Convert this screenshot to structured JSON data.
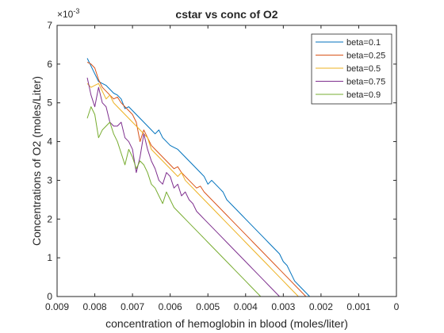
{
  "chart_data": {
    "type": "line",
    "title": "cstar vs conc of O2",
    "xlabel": "concentration of hemoglobin in blood (moles/liter)",
    "ylabel": "Concentrations of O2 (moles/Liter)",
    "x_reversed": true,
    "xlim": [
      0,
      0.009
    ],
    "ylim": [
      0,
      0.007
    ],
    "x_ticks": [
      0.009,
      0.008,
      0.007,
      0.006,
      0.005,
      0.004,
      0.003,
      0.002,
      0.001,
      0
    ],
    "x_tick_labels": [
      "0.009",
      "0.008",
      "0.007",
      "0.006",
      "0.005",
      "0.004",
      "0.003",
      "0.002",
      "0.001",
      "0"
    ],
    "y_ticks": [
      0,
      0.001,
      0.002,
      0.003,
      0.004,
      0.005,
      0.006,
      0.007
    ],
    "y_tick_labels": [
      "0",
      "1",
      "2",
      "3",
      "4",
      "5",
      "6",
      "7"
    ],
    "y_exponent_label": "×10",
    "y_exponent": "-3",
    "grid": false,
    "legend_position": "top-right",
    "series": [
      {
        "name": "beta=0.1",
        "color": "#0072BD",
        "x": [
          0.0082,
          0.0081,
          0.008,
          0.0079,
          0.0078,
          0.0077,
          0.0076,
          0.0075,
          0.0074,
          0.0073,
          0.0072,
          0.0071,
          0.007,
          0.0069,
          0.0068,
          0.0067,
          0.0066,
          0.0065,
          0.0064,
          0.0063,
          0.0062,
          0.0061,
          0.006,
          0.0059,
          0.0058,
          0.0057,
          0.0056,
          0.0055,
          0.0054,
          0.0053,
          0.0052,
          0.0051,
          0.005,
          0.0049,
          0.0048,
          0.0047,
          0.0046,
          0.0045,
          0.0044,
          0.0043,
          0.0042,
          0.0041,
          0.004,
          0.0039,
          0.0038,
          0.0037,
          0.0036,
          0.0035,
          0.0034,
          0.0033,
          0.0032,
          0.0031,
          0.003,
          0.0029,
          0.0028,
          0.0027,
          0.0026,
          0.0025,
          0.0024,
          0.0023,
          0.0022,
          0.0021,
          0.002,
          0.0019,
          0.0018,
          0.0017,
          0.0016,
          0.0015,
          0.0014,
          0.0013,
          0.0012,
          0.0011,
          0.001,
          0.0009,
          0.0008,
          0.0007,
          0.0006,
          0.0005,
          0.0004,
          0.0003,
          0.0002,
          0.0001,
          0
        ],
        "values": [
          0.00615,
          0.00595,
          0.00575,
          0.00555,
          0.0055,
          0.00545,
          0.00535,
          0.00525,
          0.0052,
          0.0051,
          0.00485,
          0.0049,
          0.0048,
          0.0047,
          0.0046,
          0.0045,
          0.0044,
          0.0043,
          0.0042,
          0.0043,
          0.0041,
          0.004,
          0.0039,
          0.00385,
          0.0038,
          0.0037,
          0.0036,
          0.0035,
          0.0034,
          0.0033,
          0.0032,
          0.0031,
          0.0029,
          0.003,
          0.0029,
          0.0028,
          0.0027,
          0.0025,
          0.0024,
          0.0023,
          0.0022,
          0.0021,
          0.002,
          0.0019,
          0.0018,
          0.0017,
          0.0016,
          0.0015,
          0.0014,
          0.0013,
          0.0012,
          0.0011,
          0.0009,
          0.0008,
          0.0006,
          0.0004,
          0.0003,
          0.0002,
          0.0001,
          0,
          0,
          0,
          0,
          0,
          0,
          0,
          0,
          0,
          0,
          0,
          0,
          0,
          0,
          0,
          0,
          0,
          0,
          0,
          0,
          0,
          0,
          0,
          0
        ]
      },
      {
        "name": "beta=0.25",
        "color": "#D95319",
        "x": [
          0.0082,
          0.0081,
          0.008,
          0.0079,
          0.0078,
          0.0077,
          0.0076,
          0.0075,
          0.0074,
          0.0073,
          0.0072,
          0.0071,
          0.007,
          0.0069,
          0.0068,
          0.0067,
          0.0066,
          0.0065,
          0.0064,
          0.0063,
          0.0062,
          0.0061,
          0.006,
          0.0059,
          0.0058,
          0.0057,
          0.0056,
          0.0055,
          0.0054,
          0.0053,
          0.0052,
          0.0051,
          0.005,
          0.0049,
          0.0048,
          0.0047,
          0.0046,
          0.0045,
          0.0044,
          0.0043,
          0.0042,
          0.0041,
          0.004,
          0.0039,
          0.0038,
          0.0037,
          0.0036,
          0.0035,
          0.0034,
          0.0033,
          0.0032,
          0.0031,
          0.003,
          0.0029,
          0.0028,
          0.0027,
          0.0026,
          0.0025,
          0.0024,
          0.0023,
          0.0022,
          0.0021,
          0.002,
          0.0019,
          0.0018,
          0.0017,
          0.0016,
          0.0015,
          0.0014,
          0.0013,
          0.0012,
          0.0011,
          0.001,
          0.0009,
          0.0008,
          0.0007,
          0.0006,
          0.0005,
          0.0004,
          0.0003,
          0.0002,
          0.0001,
          0
        ],
        "values": [
          0.00605,
          0.006,
          0.0059,
          0.0056,
          0.0054,
          0.0053,
          0.0052,
          0.0051,
          0.00515,
          0.005,
          0.0049,
          0.0048,
          0.0047,
          0.0045,
          0.004,
          0.0043,
          0.0041,
          0.0039,
          0.0038,
          0.0037,
          0.0036,
          0.0035,
          0.0034,
          0.0033,
          0.00335,
          0.0032,
          0.0031,
          0.003,
          0.0029,
          0.0028,
          0.00285,
          0.0027,
          0.0026,
          0.0025,
          0.0024,
          0.0023,
          0.0022,
          0.0021,
          0.002,
          0.0019,
          0.0018,
          0.0017,
          0.0016,
          0.0015,
          0.0014,
          0.0013,
          0.0012,
          0.0011,
          0.001,
          0.0009,
          0.0008,
          0.0007,
          0.0006,
          0.0005,
          0.0004,
          0.0003,
          0.0002,
          0.0001,
          0,
          0,
          0,
          0,
          0,
          0,
          0,
          0,
          0,
          0,
          0,
          0,
          0,
          0,
          0,
          0,
          0,
          0,
          0,
          0,
          0,
          0,
          0,
          0,
          0
        ]
      },
      {
        "name": "beta=0.5",
        "color": "#EDB120",
        "x": [
          0.0082,
          0.0081,
          0.008,
          0.0079,
          0.0078,
          0.0077,
          0.0076,
          0.0075,
          0.0074,
          0.0073,
          0.0072,
          0.0071,
          0.007,
          0.0069,
          0.0068,
          0.0067,
          0.0066,
          0.0065,
          0.0064,
          0.0063,
          0.0062,
          0.0061,
          0.006,
          0.0059,
          0.0058,
          0.0057,
          0.0056,
          0.0055,
          0.0054,
          0.0053,
          0.0052,
          0.0051,
          0.005,
          0.0049,
          0.0048,
          0.0047,
          0.0046,
          0.0045,
          0.0044,
          0.0043,
          0.0042,
          0.0041,
          0.004,
          0.0039,
          0.0038,
          0.0037,
          0.0036,
          0.0035,
          0.0034,
          0.0033,
          0.0032,
          0.0031,
          0.003,
          0.0029,
          0.0028,
          0.0027,
          0.0026,
          0.0025,
          0.0024,
          0.0023,
          0.0022,
          0.0021,
          0.002,
          0.0019,
          0.0018,
          0.0017,
          0.0016,
          0.0015,
          0.0014,
          0.0013,
          0.0012,
          0.0011,
          0.001,
          0.0009,
          0.0008,
          0.0007,
          0.0006,
          0.0005,
          0.0004,
          0.0003,
          0.0002,
          0.0001,
          0
        ],
        "values": [
          0.0055,
          0.0054,
          0.00545,
          0.0055,
          0.0053,
          0.0051,
          0.0052,
          0.005,
          0.0049,
          0.0048,
          0.0047,
          0.0046,
          0.0045,
          0.0044,
          0.0043,
          0.0042,
          0.0041,
          0.0038,
          0.0037,
          0.0036,
          0.0035,
          0.0034,
          0.0033,
          0.0032,
          0.0031,
          0.0032,
          0.003,
          0.0029,
          0.0028,
          0.0027,
          0.0026,
          0.0025,
          0.0024,
          0.0023,
          0.0022,
          0.0021,
          0.002,
          0.0019,
          0.0018,
          0.0017,
          0.0016,
          0.0015,
          0.0014,
          0.0013,
          0.0012,
          0.0011,
          0.001,
          0.0009,
          0.0008,
          0.0007,
          0.0006,
          0.0005,
          0.0004,
          0.0003,
          0.0002,
          0.0001,
          0,
          0,
          0,
          0,
          0,
          0,
          0,
          0,
          0,
          0,
          0,
          0,
          0,
          0,
          0,
          0,
          0,
          0,
          0,
          0,
          0,
          0,
          0,
          0,
          0,
          0,
          0
        ]
      },
      {
        "name": "beta=0.75",
        "color": "#7E2F8E",
        "x": [
          0.0082,
          0.0081,
          0.008,
          0.0079,
          0.0078,
          0.0077,
          0.0076,
          0.0075,
          0.0074,
          0.0073,
          0.0072,
          0.0071,
          0.007,
          0.0069,
          0.0068,
          0.0067,
          0.0066,
          0.0065,
          0.0064,
          0.0063,
          0.0062,
          0.0061,
          0.006,
          0.0059,
          0.0058,
          0.0057,
          0.0056,
          0.0055,
          0.0054,
          0.0053,
          0.0052,
          0.0051,
          0.005,
          0.0049,
          0.0048,
          0.0047,
          0.0046,
          0.0045,
          0.0044,
          0.0043,
          0.0042,
          0.0041,
          0.004,
          0.0039,
          0.0038,
          0.0037,
          0.0036,
          0.0035,
          0.0034,
          0.0033,
          0.0032,
          0.0031,
          0.003,
          0.0029,
          0.0028,
          0.0027,
          0.0026,
          0.0025,
          0.0024,
          0.0023,
          0.0022,
          0.0021,
          0.002,
          0.0019,
          0.0018,
          0.0017,
          0.0016,
          0.0015,
          0.0014,
          0.0013,
          0.0012,
          0.0011,
          0.001,
          0.0009,
          0.0008,
          0.0007,
          0.0006,
          0.0005,
          0.0004,
          0.0003,
          0.0002,
          0.0001,
          0
        ],
        "values": [
          0.00565,
          0.0052,
          0.0049,
          0.0054,
          0.005,
          0.0049,
          0.0045,
          0.0044,
          0.0044,
          0.0045,
          0.0041,
          0.004,
          0.0038,
          0.0032,
          0.0036,
          0.0042,
          0.0038,
          0.0035,
          0.0033,
          0.003,
          0.0029,
          0.0032,
          0.0031,
          0.0028,
          0.0029,
          0.0026,
          0.0027,
          0.0025,
          0.0024,
          0.0022,
          0.0021,
          0.002,
          0.0019,
          0.0018,
          0.0017,
          0.0016,
          0.0015,
          0.0014,
          0.0013,
          0.0012,
          0.0011,
          0.001,
          0.0009,
          0.0008,
          0.0007,
          0.0006,
          0.0005,
          0.0004,
          0.0003,
          0.0002,
          0.0001,
          0,
          0,
          0,
          0,
          0,
          0,
          0,
          0,
          0,
          0,
          0,
          0,
          0,
          0,
          0,
          0,
          0,
          0,
          0,
          0,
          0,
          0,
          0,
          0,
          0,
          0,
          0,
          0,
          0,
          0,
          0,
          0
        ]
      },
      {
        "name": "beta=0.9",
        "color": "#77AC30",
        "x": [
          0.0082,
          0.0081,
          0.008,
          0.0079,
          0.0078,
          0.0077,
          0.0076,
          0.0075,
          0.0074,
          0.0073,
          0.0072,
          0.0071,
          0.007,
          0.0069,
          0.0068,
          0.0067,
          0.0066,
          0.0065,
          0.0064,
          0.0063,
          0.0062,
          0.0061,
          0.006,
          0.0059,
          0.0058,
          0.0057,
          0.0056,
          0.0055,
          0.0054,
          0.0053,
          0.0052,
          0.0051,
          0.005,
          0.0049,
          0.0048,
          0.0047,
          0.0046,
          0.0045,
          0.0044,
          0.0043,
          0.0042,
          0.0041,
          0.004,
          0.0039,
          0.0038,
          0.0037,
          0.0036,
          0.0035,
          0.0034,
          0.0033,
          0.0032,
          0.0031,
          0.003,
          0.0029,
          0.0028,
          0.0027,
          0.0026,
          0.0025,
          0.0024,
          0.0023,
          0.0022,
          0.0021,
          0.002,
          0.0019,
          0.0018,
          0.0017,
          0.0016,
          0.0015,
          0.0014,
          0.0013,
          0.0012,
          0.0011,
          0.001,
          0.0009,
          0.0008,
          0.0007,
          0.0006,
          0.0005,
          0.0004,
          0.0003,
          0.0002,
          0.0001,
          0
        ],
        "values": [
          0.0046,
          0.0049,
          0.0047,
          0.0041,
          0.0043,
          0.0044,
          0.0045,
          0.0042,
          0.004,
          0.0037,
          0.0034,
          0.0038,
          0.0036,
          0.0033,
          0.0035,
          0.0034,
          0.0032,
          0.0029,
          0.0028,
          0.0026,
          0.0024,
          0.0027,
          0.0025,
          0.0023,
          0.0022,
          0.0021,
          0.002,
          0.0019,
          0.0018,
          0.0017,
          0.0016,
          0.0015,
          0.0014,
          0.0013,
          0.0012,
          0.0011,
          0.001,
          0.0009,
          0.0008,
          0.0007,
          0.0006,
          0.0005,
          0.0004,
          0.0003,
          0.0002,
          0.0001,
          0,
          0,
          0,
          0,
          0,
          0,
          0,
          0,
          0,
          0,
          0,
          0,
          0,
          0,
          0,
          0,
          0,
          0,
          0,
          0,
          0,
          0,
          0,
          0,
          0,
          0,
          0,
          0,
          0,
          0,
          0,
          0,
          0,
          0,
          0,
          0,
          0
        ]
      }
    ]
  }
}
